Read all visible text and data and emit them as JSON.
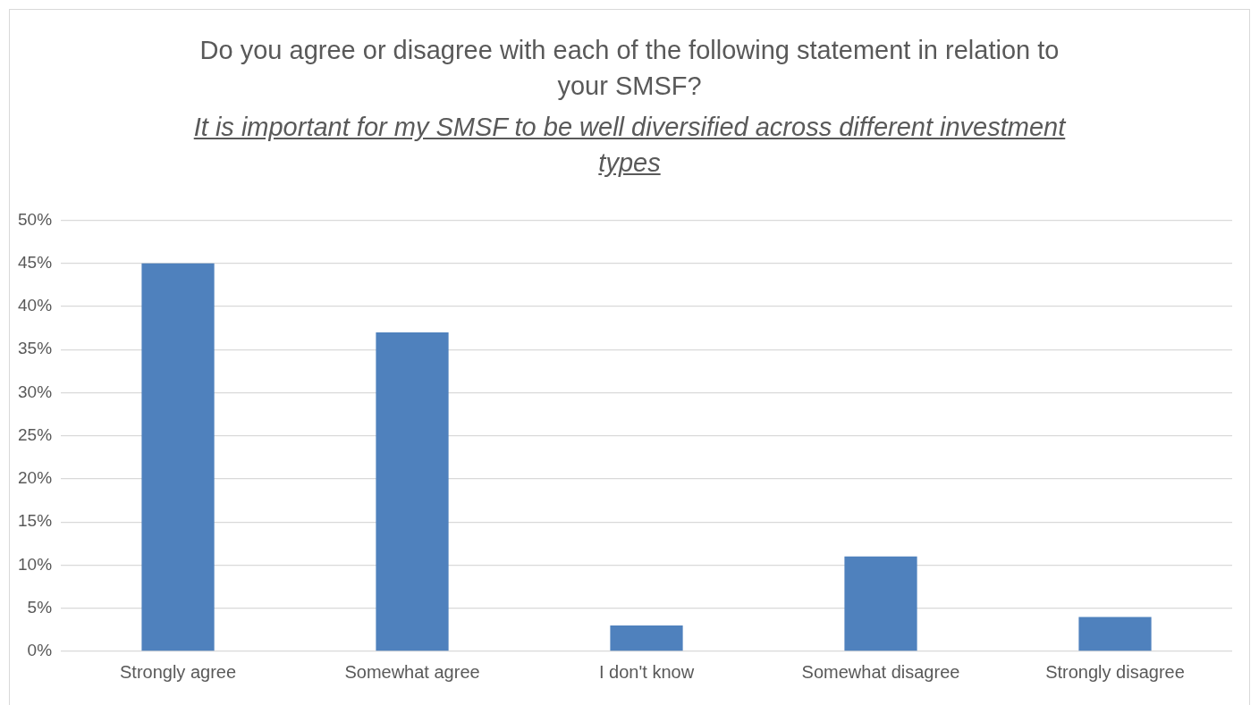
{
  "chart_data": {
    "type": "bar",
    "title": "Do you agree or disagree with each of the following statement in relation to your SMSF?",
    "subtitle": "It is important for my SMSF to be well diversified across different investment types",
    "categories": [
      "Strongly agree",
      "Somewhat agree",
      "I don't know",
      "Somewhat disagree",
      "Strongly disagree"
    ],
    "values": [
      45,
      37,
      3,
      11,
      4
    ],
    "color": "#4f81bd",
    "ylim": [
      0,
      50
    ],
    "yticks": [
      {
        "value": 0,
        "label": "0%"
      },
      {
        "value": 5,
        "label": "5%"
      },
      {
        "value": 10,
        "label": "10%"
      },
      {
        "value": 15,
        "label": "15%"
      },
      {
        "value": 20,
        "label": "20%"
      },
      {
        "value": 25,
        "label": "25%"
      },
      {
        "value": 30,
        "label": "30%"
      },
      {
        "value": 35,
        "label": "35%"
      },
      {
        "value": 40,
        "label": "40%"
      },
      {
        "value": 45,
        "label": "45%"
      },
      {
        "value": 50,
        "label": "50%"
      }
    ],
    "grid": "y",
    "legend": false
  }
}
